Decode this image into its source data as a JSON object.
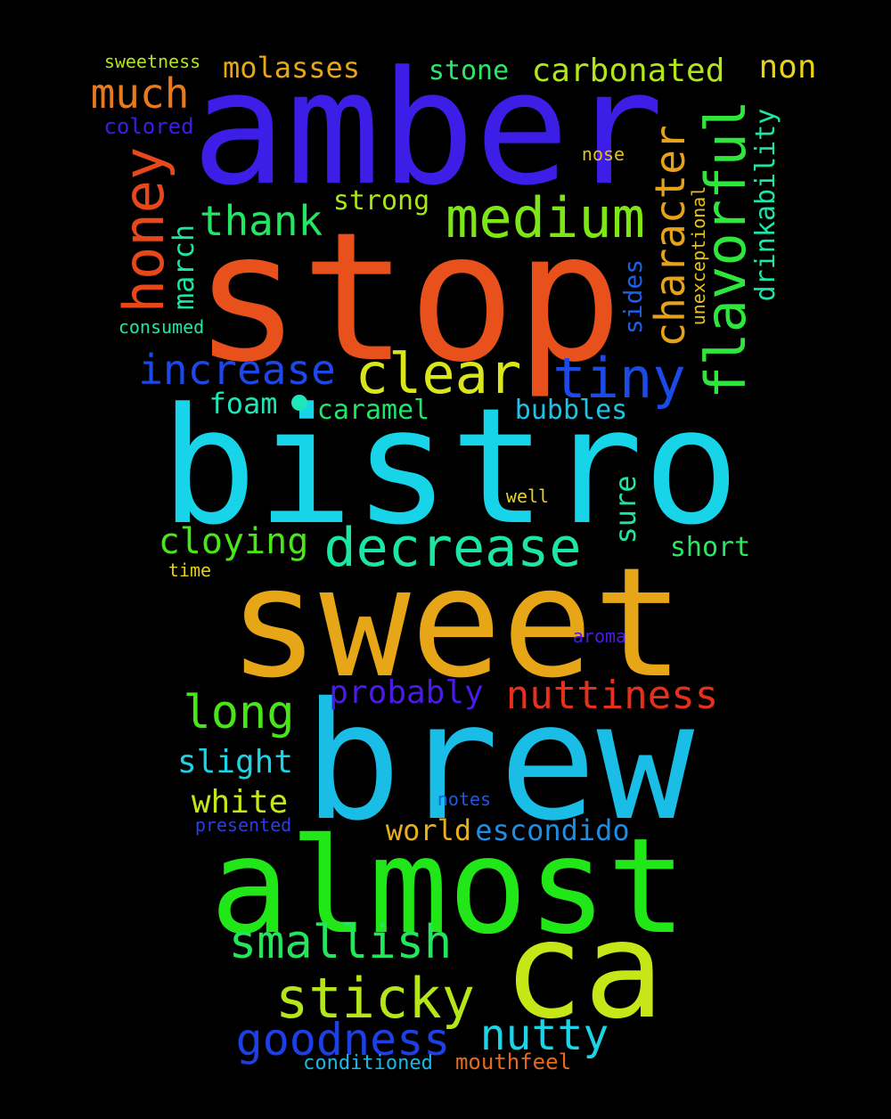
{
  "words": [
    {
      "text": "amber",
      "color": "#3c1ee6"
    },
    {
      "text": "stop",
      "color": "#e8501c"
    },
    {
      "text": "bistro",
      "color": "#17d4e8"
    },
    {
      "text": "sweet",
      "color": "#e6a618"
    },
    {
      "text": "brew",
      "color": "#19bde6"
    },
    {
      "text": "almost",
      "color": "#21e617"
    },
    {
      "text": "ca",
      "color": "#c7e617"
    },
    {
      "text": "flavorful",
      "color": "#2ee63c"
    },
    {
      "text": "medium",
      "color": "#7de617"
    },
    {
      "text": "honey",
      "color": "#e6481b"
    },
    {
      "text": "character",
      "color": "#e6a21b"
    },
    {
      "text": "clear",
      "color": "#d9e61a"
    },
    {
      "text": "tiny",
      "color": "#1b4ae6"
    },
    {
      "text": "increase",
      "color": "#1d47e6"
    },
    {
      "text": "decrease",
      "color": "#1be6a6"
    },
    {
      "text": "much",
      "color": "#e67a1f"
    },
    {
      "text": "thank",
      "color": "#23e663"
    },
    {
      "text": "carbonated",
      "color": "#b0e61a"
    },
    {
      "text": "molasses",
      "color": "#e6a61a"
    },
    {
      "text": "non",
      "color": "#e6d21a"
    },
    {
      "text": "stone",
      "color": "#2ee66a"
    },
    {
      "text": "march",
      "color": "#1be6a0"
    },
    {
      "text": "drinkability",
      "color": "#1de6a8"
    },
    {
      "text": "strong",
      "color": "#a8e61a"
    },
    {
      "text": "cloying",
      "color": "#49e61a"
    },
    {
      "text": "foam",
      "color": "#1fe6b8"
    },
    {
      "text": "caramel",
      "color": "#1ee666"
    },
    {
      "text": "bubbles",
      "color": "#1bc4e6"
    },
    {
      "text": "sure",
      "color": "#1de6a0"
    },
    {
      "text": "sides",
      "color": "#1f5ee6"
    },
    {
      "text": "unexceptional",
      "color": "#e6c01b"
    },
    {
      "text": "short",
      "color": "#2ee664"
    },
    {
      "text": "long",
      "color": "#47e61b"
    },
    {
      "text": "nuttiness",
      "color": "#e6301b"
    },
    {
      "text": "probably",
      "color": "#4a1be6"
    },
    {
      "text": "slight",
      "color": "#1ed2e6"
    },
    {
      "text": "white",
      "color": "#c4e61a"
    },
    {
      "text": "smallish",
      "color": "#23e65a"
    },
    {
      "text": "sticky",
      "color": "#b4e61b"
    },
    {
      "text": "goodness",
      "color": "#1d3fe6"
    },
    {
      "text": "nutty",
      "color": "#1bd4e6"
    },
    {
      "text": "world",
      "color": "#e6b01b"
    },
    {
      "text": "escondido",
      "color": "#1c8ee6"
    },
    {
      "text": "conditioned",
      "color": "#1ab8e6"
    },
    {
      "text": "mouthfeel",
      "color": "#e66a1b"
    },
    {
      "text": "sweetness",
      "color": "#b0e61a"
    },
    {
      "text": "colored",
      "color": "#3a1ee6"
    },
    {
      "text": "nose",
      "color": "#e6c01b"
    },
    {
      "text": "consumed",
      "color": "#1de6a6"
    },
    {
      "text": "well",
      "color": "#e6d21b"
    },
    {
      "text": "time",
      "color": "#e6cc1b"
    },
    {
      "text": "aroma",
      "color": "#4a1be6"
    },
    {
      "text": "notes",
      "color": "#1e58e6"
    },
    {
      "text": "presented",
      "color": "#2a3ee6"
    }
  ]
}
